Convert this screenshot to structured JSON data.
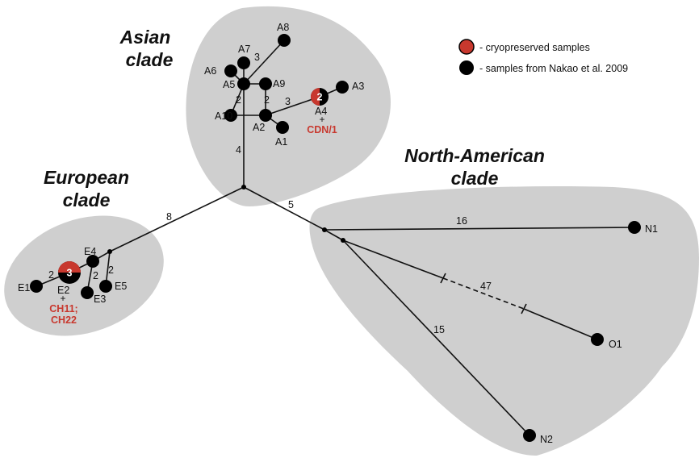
{
  "legend": {
    "cryopreserved_label": "- cryopreserved samples",
    "nakao_label": "- samples from Nakao et al. 2009",
    "colors": {
      "cryopreserved": "#c8382e",
      "nakao": "#000000"
    }
  },
  "clades": {
    "asian": {
      "line1": "Asian",
      "line2": "clade"
    },
    "european": {
      "line1": "European",
      "line2": "clade"
    },
    "north_american": {
      "line1": "North-American",
      "line2": "clade"
    }
  },
  "haplotypes": {
    "A1": "A1",
    "A2": "A2",
    "A3": "A3",
    "A4": "A4",
    "A5": "A5",
    "A6": "A6",
    "A7": "A7",
    "A8": "A8",
    "A9": "A9",
    "A10": "A10",
    "E1": "E1",
    "E2": "E2",
    "E3": "E3",
    "E4": "E4",
    "E5": "E5",
    "N1": "N1",
    "N2": "N2",
    "O1": "O1"
  },
  "sample_counts": {
    "A4": "2",
    "E2": "3"
  },
  "cryo_samples": {
    "A4": {
      "plus": "+",
      "name": "CDN/1"
    },
    "E2": {
      "plus": "+",
      "name_line1": "CH11;",
      "name_line2": "CH22"
    }
  },
  "mutation_steps": {
    "center_asian": "4",
    "center_european": "8",
    "center_north_american": "5",
    "a10_a5": "2",
    "a2_a9": "2",
    "a5_a8": "3",
    "a2_a4": "3",
    "e4_e2": "2",
    "e4_e3": "2",
    "branch_e5": "2",
    "n1": "16",
    "o1": "47",
    "n2": "15"
  }
}
